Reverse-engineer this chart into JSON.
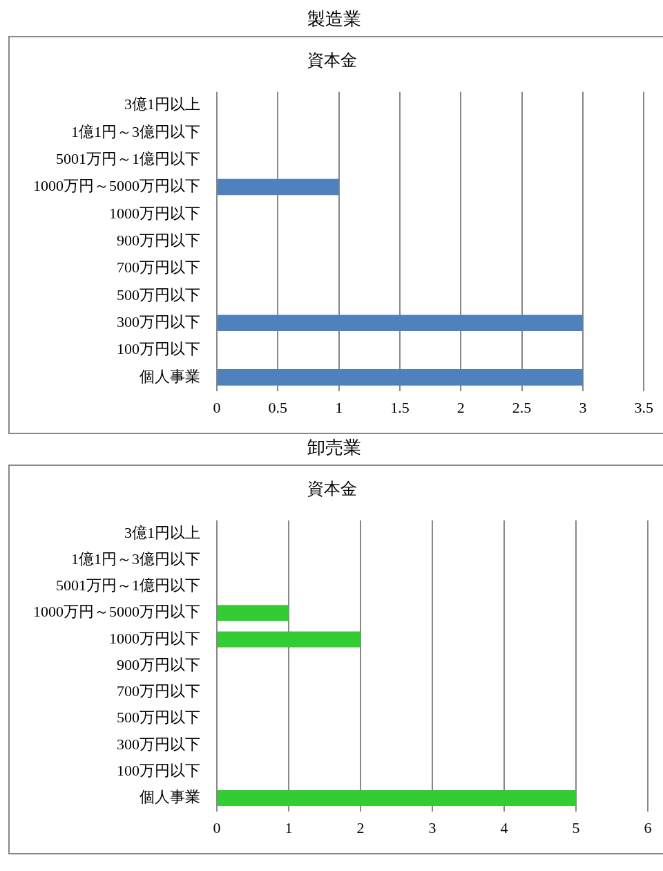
{
  "chart_data": [
    {
      "type": "bar",
      "title": "製造業",
      "subtitle": "資本金",
      "orientation": "horizontal",
      "categories": [
        "3億1円以上",
        "1億1円～3億円以下",
        "5001万円～1億円以下",
        "1000万円～5000万円以下",
        "1000万円以下",
        "900万円以下",
        "700万円以下",
        "500万円以下",
        "300万円以下",
        "100万円以下",
        "個人事業"
      ],
      "values": [
        0,
        0,
        0,
        1,
        0,
        0,
        0,
        0,
        3,
        0,
        3
      ],
      "color": "#4f81bd",
      "xlim": [
        0,
        3.5
      ],
      "xticks": [
        0,
        0.5,
        1,
        1.5,
        2,
        2.5,
        3,
        3.5
      ],
      "grid": "x",
      "legend": false
    },
    {
      "type": "bar",
      "title": "卸売業",
      "subtitle": "資本金",
      "orientation": "horizontal",
      "categories": [
        "3億1円以上",
        "1億1円～3億円以下",
        "5001万円～1億円以下",
        "1000万円～5000万円以下",
        "1000万円以下",
        "900万円以下",
        "700万円以下",
        "500万円以下",
        "300万円以下",
        "100万円以下",
        "個人事業"
      ],
      "values": [
        0,
        0,
        0,
        1,
        2,
        0,
        0,
        0,
        0,
        0,
        5
      ],
      "color": "#33cc33",
      "xlim": [
        0,
        6
      ],
      "xticks": [
        0,
        1,
        2,
        3,
        4,
        5,
        6
      ],
      "grid": "x",
      "legend": false
    }
  ]
}
